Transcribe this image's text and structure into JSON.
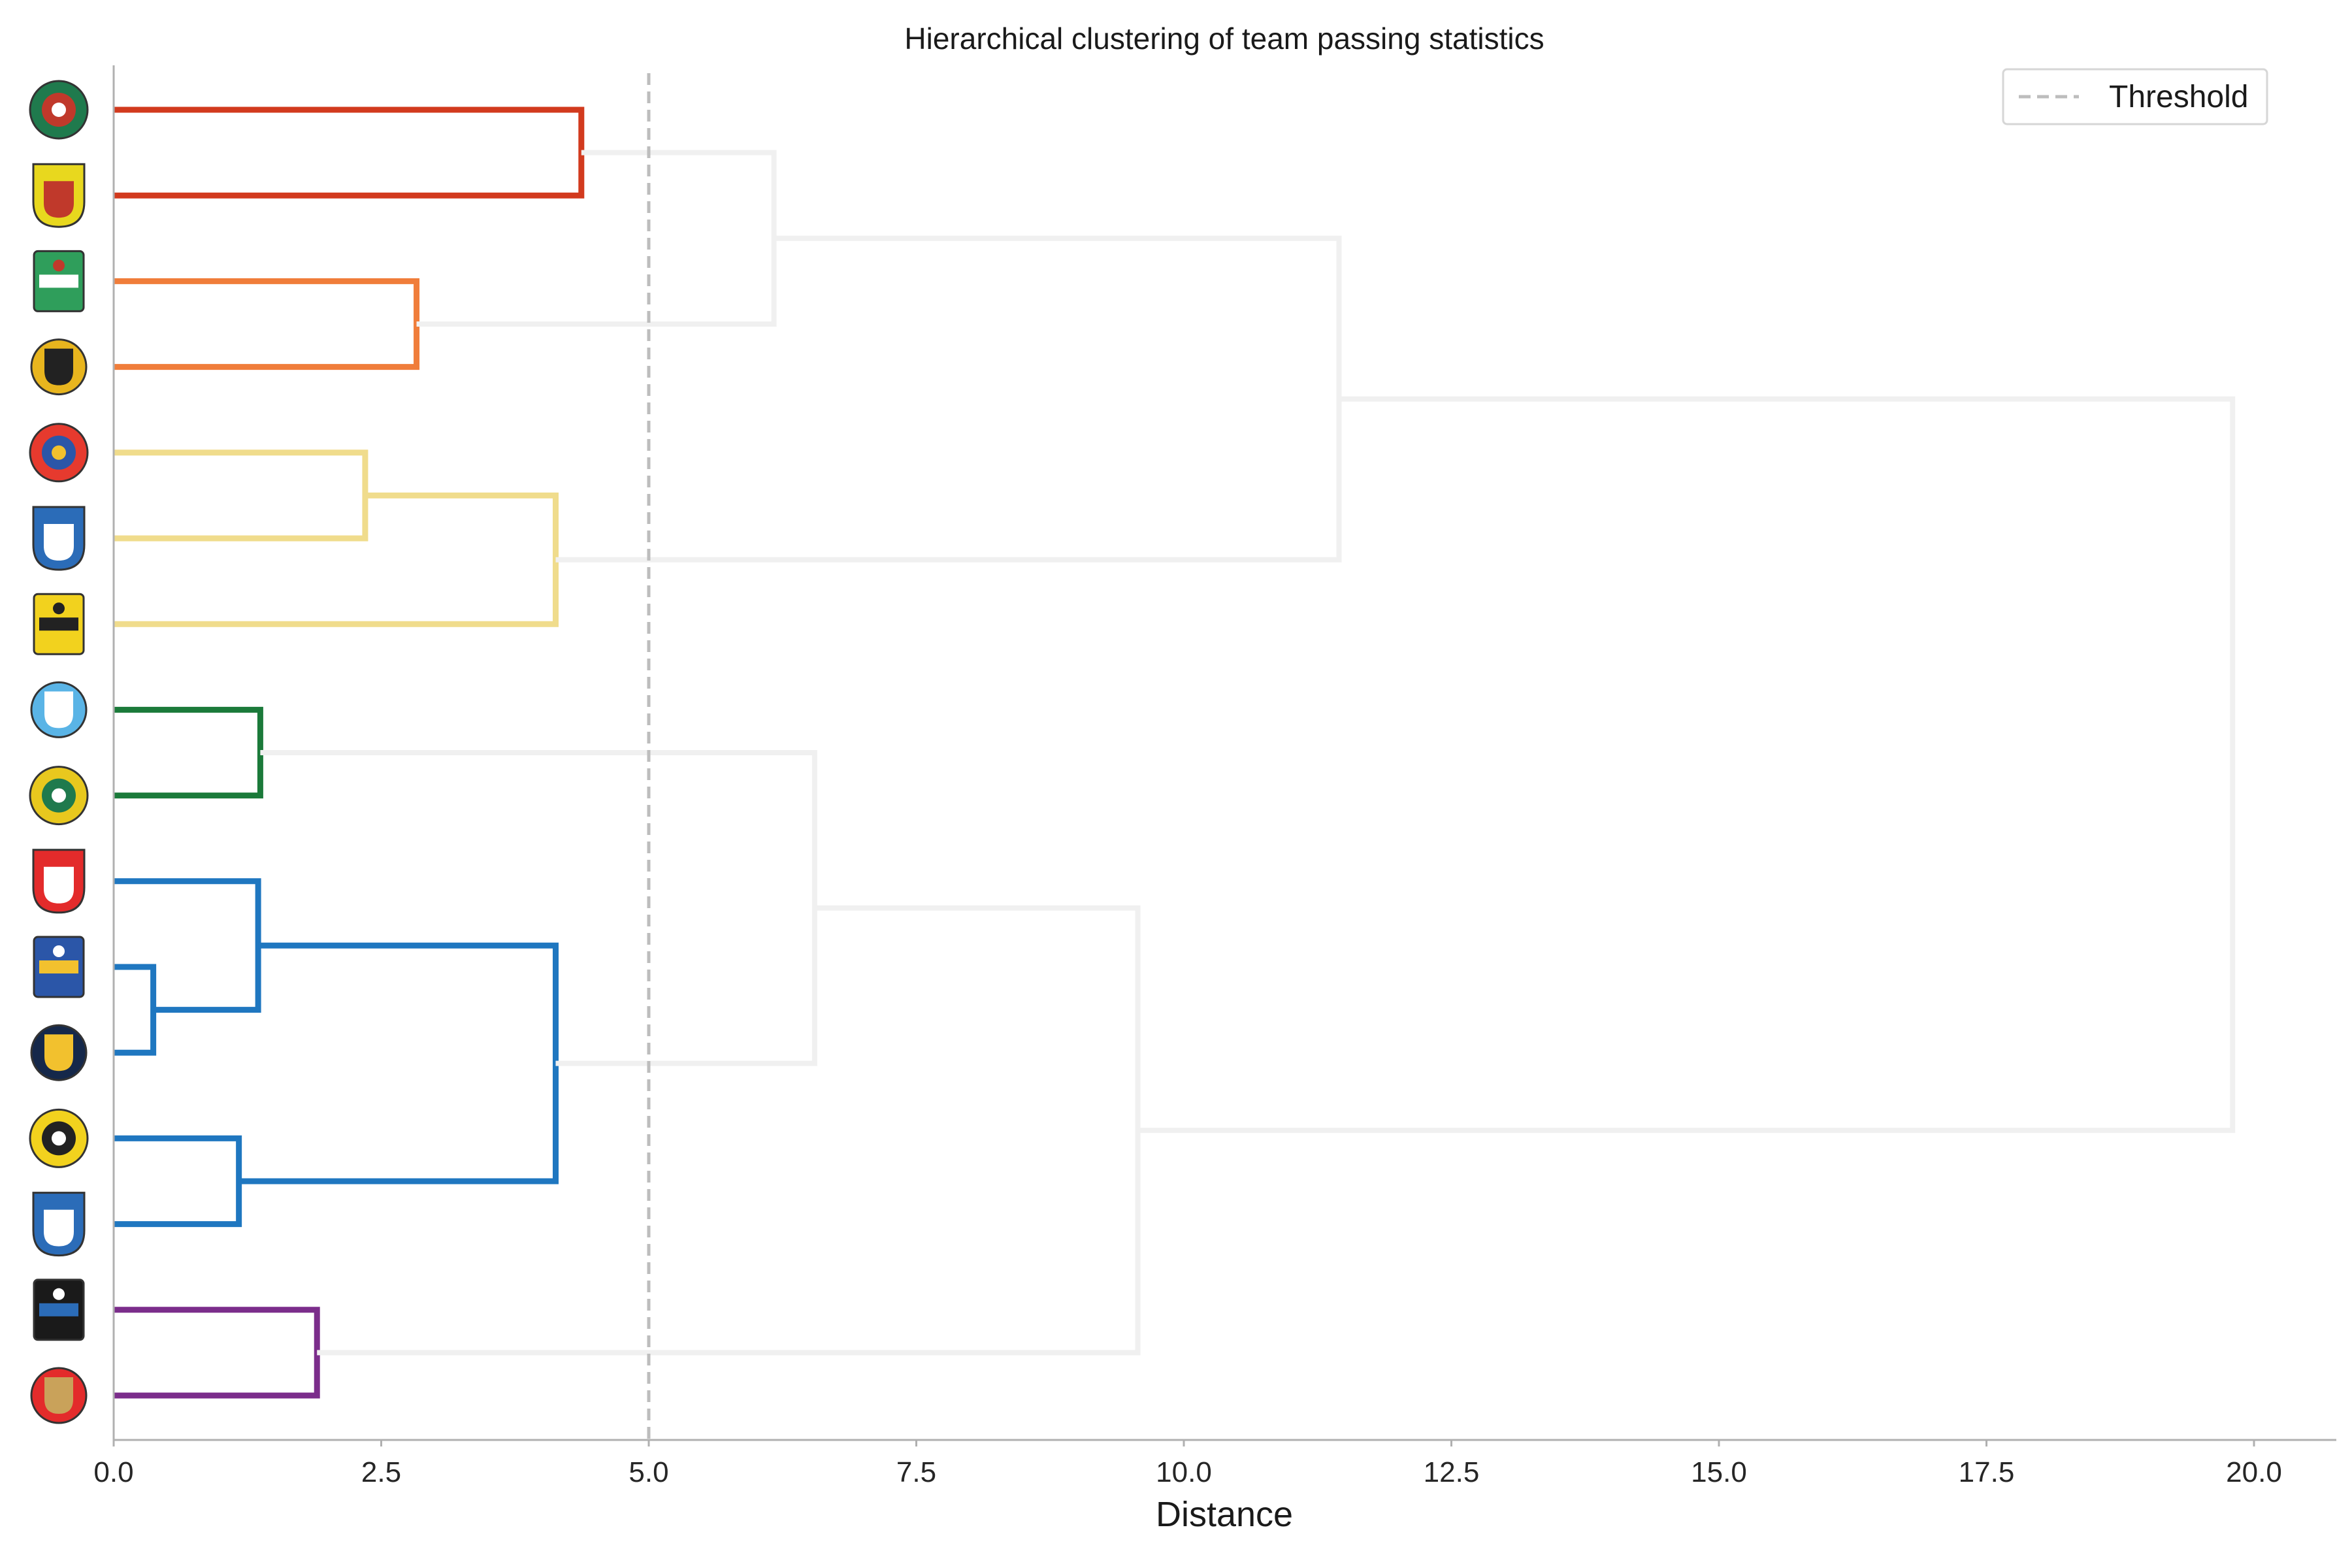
{
  "chart_data": {
    "type": "dendrogram",
    "title": "Hierarchical clustering of team passing statistics",
    "xlabel": "Distance",
    "ylabel": "",
    "xlim": [
      0,
      20.8
    ],
    "x_ticks": [
      "0.0",
      "2.5",
      "5.0",
      "7.5",
      "10.0",
      "12.5",
      "15.0",
      "17.5",
      "20.0"
    ],
    "orientation": "right-to-left",
    "leaf_labels": "club crest logos (no text labels)",
    "leaves": [
      {
        "name": "Örebro SK crest",
        "icon": "orebro-crest-icon",
        "colors": [
          "#1f7a4d",
          "#c0392b",
          "#ffffff"
        ]
      },
      {
        "name": "Östersunds FK crest",
        "icon": "ostersund-crest-icon",
        "colors": [
          "#e8d81e",
          "#c0392b",
          "#222222"
        ]
      },
      {
        "name": "Varbergs BoIS crest",
        "icon": "varberg-crest-icon",
        "colors": [
          "#2f9e5b",
          "#ffffff",
          "#c0392b"
        ]
      },
      {
        "name": "Mjällby AIF crest",
        "icon": "mjallby-crest-icon",
        "colors": [
          "#e8b51e",
          "#222222"
        ]
      },
      {
        "name": "Djurgårdens IF crest",
        "icon": "djurgarden-crest-icon",
        "colors": [
          "#e63a2e",
          "#2b56a8",
          "#f2c12e"
        ]
      },
      {
        "name": "Halmstads BK crest",
        "icon": "halmstad-crest-icon",
        "colors": [
          "#2b6cb8",
          "#ffffff",
          "#c9a25a"
        ]
      },
      {
        "name": "IF Elfsborg crest",
        "icon": "elfsborg-crest-icon",
        "colors": [
          "#f2d21e",
          "#222222"
        ]
      },
      {
        "name": "Malmö FF crest",
        "icon": "malmo-crest-icon",
        "colors": [
          "#5ab4e6",
          "#ffffff"
        ]
      },
      {
        "name": "Hammarby Fotboll crest",
        "icon": "hammarby-crest-icon",
        "colors": [
          "#e8c81e",
          "#1f7a4d",
          "#ffffff"
        ]
      },
      {
        "name": "Degerfors IF crest",
        "icon": "degerfors-crest-icon",
        "colors": [
          "#e32b2b",
          "#ffffff"
        ]
      },
      {
        "name": "IFK Göteborg crest",
        "icon": "goteborg-crest-icon",
        "colors": [
          "#2b56a8",
          "#f2c12e",
          "#ffffff"
        ]
      },
      {
        "name": "AIK crest",
        "icon": "aik-crest-icon",
        "colors": [
          "#15284a",
          "#f2c12e"
        ]
      },
      {
        "name": "BK Häcken crest",
        "icon": "hacken-crest-icon",
        "colors": [
          "#f2d21e",
          "#222222"
        ]
      },
      {
        "name": "IFK Norrköping crest",
        "icon": "norrkoping-crest-icon",
        "colors": [
          "#2b6cb8",
          "#ffffff"
        ]
      },
      {
        "name": "IK Sirius crest",
        "icon": "sirius-crest-icon",
        "colors": [
          "#1a1a1a",
          "#2b6cb8",
          "#ffffff"
        ]
      },
      {
        "name": "Kalmar FF crest",
        "icon": "kalmar-crest-icon",
        "colors": [
          "#e32b2b",
          "#c9a25a",
          "#ffffff"
        ]
      }
    ],
    "merges": [
      {
        "a": "L10",
        "b": "L11",
        "height": 0.37,
        "color": "#1f77c0"
      },
      {
        "a": "L9",
        "b": "M0",
        "height": 1.35,
        "color": "#1f77c0"
      },
      {
        "a": "L7",
        "b": "L8",
        "height": 1.37,
        "color": "#1b7a3a"
      },
      {
        "a": "L12",
        "b": "L13",
        "height": 1.17,
        "color": "#1f77c0"
      },
      {
        "a": "L14",
        "b": "L15",
        "height": 1.9,
        "color": "#7b2d8b"
      },
      {
        "a": "L4",
        "b": "L5",
        "height": 2.35,
        "color": "#f0dc8c"
      },
      {
        "a": "L2",
        "b": "L3",
        "height": 2.83,
        "color": "#f07d3a"
      },
      {
        "a": "M5",
        "b": "L6",
        "height": 4.13,
        "color": "#f0dc8c"
      },
      {
        "a": "M1",
        "b": "M3",
        "height": 4.13,
        "color": "#1f77c0"
      },
      {
        "a": "L0",
        "b": "L1",
        "height": 4.37,
        "color": "#d23a1e"
      },
      {
        "a": "M6",
        "b": "M9",
        "height": 6.17,
        "color": "#f0f0f0"
      },
      {
        "a": "M2",
        "b": "M8",
        "height": 6.55,
        "color": "#f0f0f0"
      },
      {
        "a": "M11",
        "b": "M4",
        "height": 9.57,
        "color": "#f0f0f0"
      },
      {
        "a": "M10",
        "b": "M7",
        "height": 11.45,
        "color": "#f0f0f0"
      },
      {
        "a": "M13",
        "b": "M12",
        "height": 19.8,
        "color": "#f0f0f0"
      }
    ],
    "threshold": 5.0,
    "threshold_color": "#bdbdbd",
    "legend": {
      "entries": [
        "Threshold"
      ],
      "placement": "top-right"
    },
    "grid": false
  }
}
